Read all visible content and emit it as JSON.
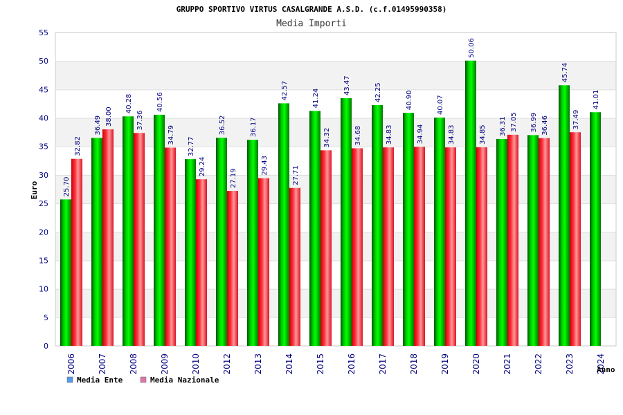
{
  "chart_data": {
    "type": "bar",
    "title": "GRUPPO SPORTIVO VIRTUS CASALGRANDE A.S.D. (c.f.01495990358)",
    "subtitle": "Media Importi",
    "xlabel": "Anno",
    "ylabel": "Euro",
    "ylim": [
      0,
      55
    ],
    "yticks": [
      0,
      5,
      10,
      15,
      20,
      25,
      30,
      35,
      40,
      45,
      50,
      55
    ],
    "grid": true,
    "legend_position": "bottom-left",
    "categories": [
      "2006",
      "2007",
      "2008",
      "2009",
      "2010",
      "2012",
      "2013",
      "2014",
      "2015",
      "2016",
      "2017",
      "2018",
      "2019",
      "2020",
      "2021",
      "2022",
      "2023",
      "2024"
    ],
    "series": [
      {
        "name": "Media Ente",
        "color": "#00aa00",
        "legend_color": "#5599ee",
        "values": [
          25.7,
          36.49,
          40.28,
          40.56,
          32.77,
          36.52,
          36.17,
          42.57,
          41.24,
          43.47,
          42.25,
          40.9,
          40.07,
          50.06,
          36.31,
          36.99,
          45.74,
          41.01
        ],
        "labels": [
          "25.70",
          "36.49",
          "40.28",
          "40.56",
          "32.77",
          "36.52",
          "36.17",
          "42.57",
          "41.24",
          "43.47",
          "42.25",
          "40.90",
          "40.07",
          "50.06",
          "36.31",
          "36.99",
          "45.74",
          "41.01"
        ]
      },
      {
        "name": "Media Nazionale",
        "color": "#ee2233",
        "legend_color": "#dd77aa",
        "values": [
          32.82,
          38.0,
          37.36,
          34.79,
          29.24,
          27.19,
          29.43,
          27.71,
          34.32,
          34.68,
          34.83,
          34.94,
          34.83,
          34.85,
          37.05,
          36.46,
          37.49,
          null
        ],
        "labels": [
          "32.82",
          "38.00",
          "37.36",
          "34.79",
          "29.24",
          "27.19",
          "29.43",
          "27.71",
          "34.32",
          "34.68",
          "34.83",
          "34.94",
          "34.83",
          "34.85",
          "37.05",
          "36.46",
          "37.49",
          null
        ]
      }
    ]
  }
}
